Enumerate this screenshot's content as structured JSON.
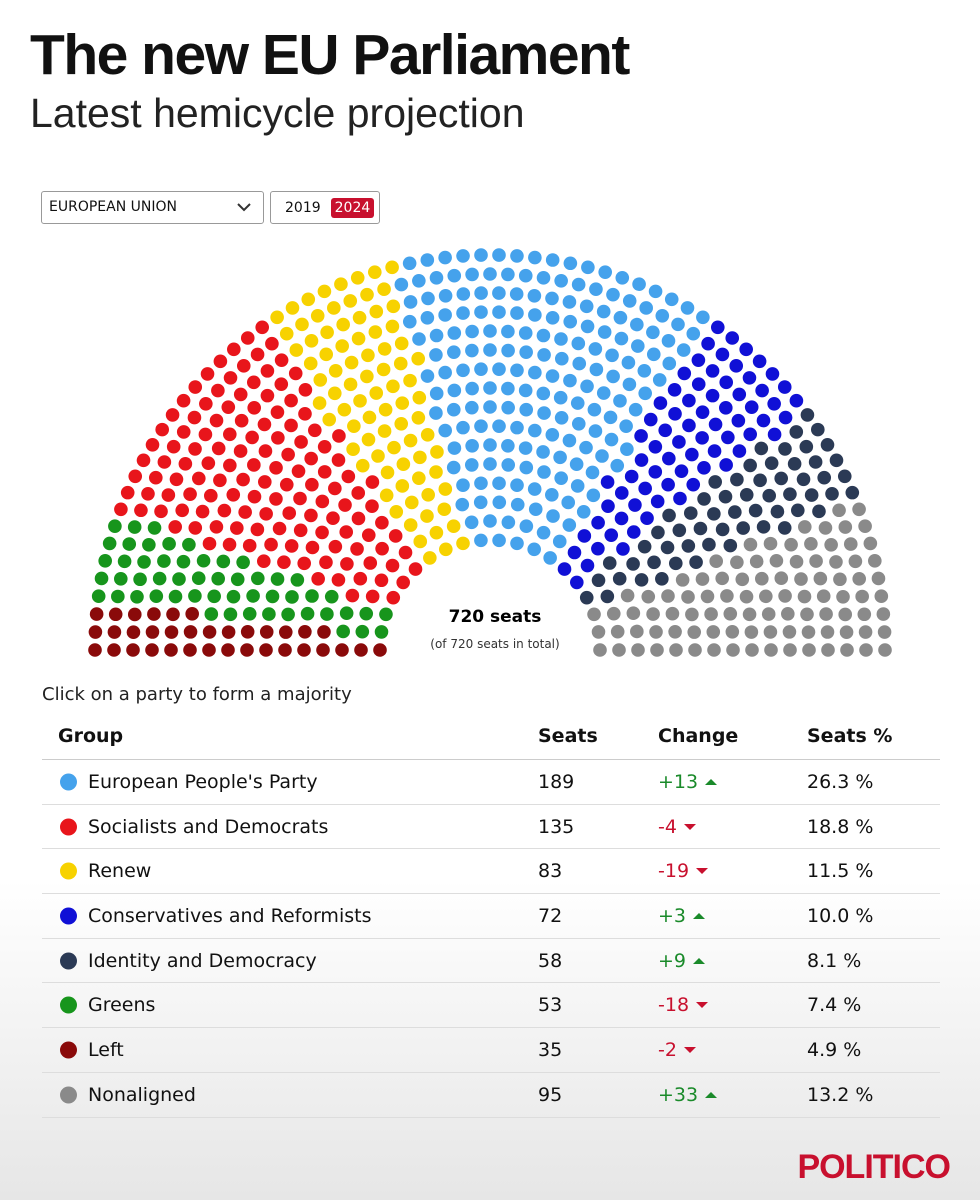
{
  "header": {
    "title": "The new EU Parliament",
    "subtitle": "Latest hemicycle projection"
  },
  "controls": {
    "region": "EUROPEAN UNION",
    "years": [
      "2019",
      "2024"
    ],
    "selected_year": 1
  },
  "hemicycle": {
    "seats_label": "720 seats",
    "total_label": "(of 720 seats in total)"
  },
  "table": {
    "instruction": "Click on a party to form a majority",
    "columns": [
      "Group",
      "Seats",
      "Change",
      "Seats %"
    ],
    "rows": [
      {
        "name": "European People's Party",
        "color": "#45a2ec",
        "seats": 189,
        "change": "+13",
        "trend": "up",
        "share": "26.3 %"
      },
      {
        "name": "Socialists and Democrats",
        "color": "#e8151b",
        "seats": 135,
        "change": "-4",
        "trend": "down",
        "share": "18.8 %"
      },
      {
        "name": "Renew",
        "color": "#f7d200",
        "seats": 83,
        "change": "-19",
        "trend": "down",
        "share": "11.5 %"
      },
      {
        "name": "Conservatives and Reformists",
        "color": "#1010d6",
        "seats": 72,
        "change": "+3",
        "trend": "up",
        "share": "10.0 %"
      },
      {
        "name": "Identity and Democracy",
        "color": "#2b3a55",
        "seats": 58,
        "change": "+9",
        "trend": "up",
        "share": "8.1 %"
      },
      {
        "name": "Greens",
        "color": "#17951c",
        "seats": 53,
        "change": "-18",
        "trend": "down",
        "share": "7.4 %"
      },
      {
        "name": "Left",
        "color": "#8a0a0a",
        "seats": 35,
        "change": "-2",
        "trend": "down",
        "share": "4.9 %"
      },
      {
        "name": "Nonaligned",
        "color": "#8a8a8a",
        "seats": 95,
        "change": "+33",
        "trend": "up",
        "share": "13.2 %"
      }
    ]
  },
  "footer": {
    "brand": "POLITICO"
  }
}
